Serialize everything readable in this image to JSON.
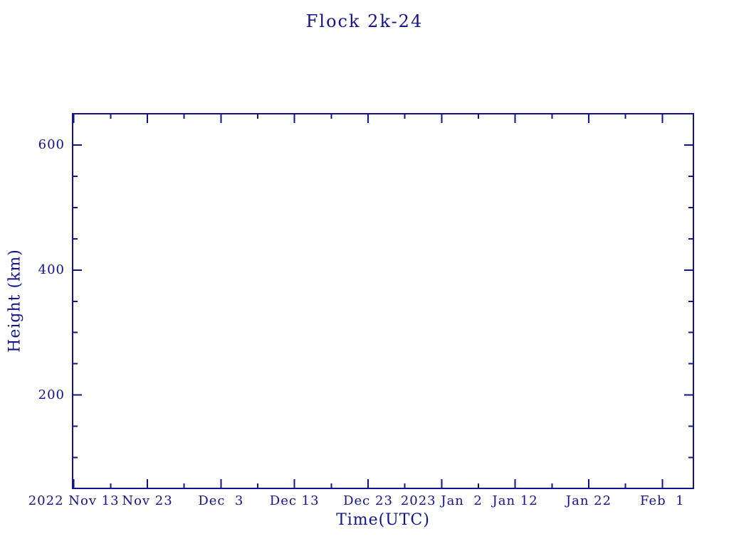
{
  "figure": {
    "background": "#ffffff",
    "accent": "#12128f"
  },
  "chart_data": {
    "type": "scatter",
    "title": "Flock 2k-24",
    "xlabel": "Time(UTC)",
    "ylabel": "Height (km)",
    "x_axis": {
      "tick_labels": [
        "2022 Nov 13",
        "Nov 23",
        "Dec  3",
        "Dec 13",
        "Dec 23",
        "2023 Jan  2",
        "Jan 12",
        "Jan 22",
        "Feb  1"
      ],
      "major_step_days": 10,
      "minor_step_days": 5,
      "range": [
        "2022-11-13",
        "2023-02-05"
      ]
    },
    "y_axis": {
      "major_ticks": [
        200,
        400,
        600
      ],
      "minor_step": 50,
      "range": [
        50,
        650
      ]
    },
    "grid": false,
    "legend": false,
    "series": []
  }
}
